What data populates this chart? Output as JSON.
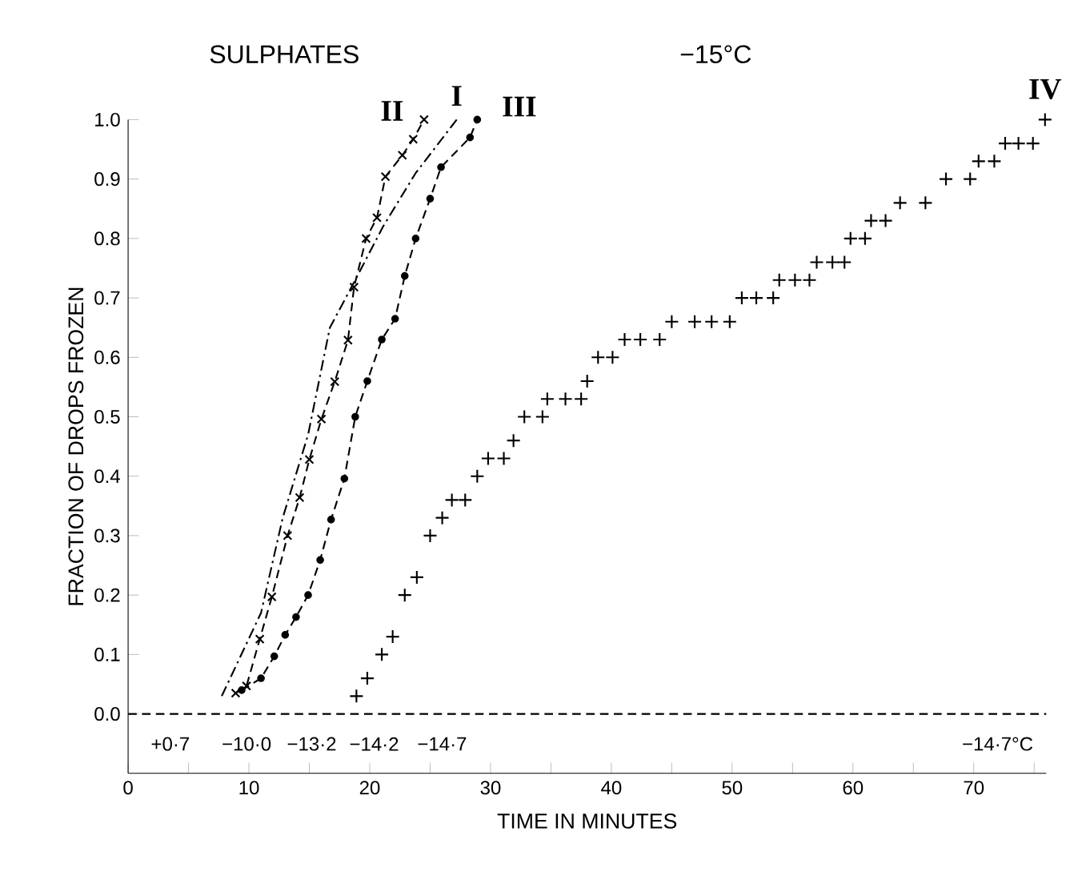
{
  "chart_data": {
    "type": "line",
    "title": "SULPHATES",
    "xlabel": "TIME IN MINUTES",
    "ylabel": "FRACTION OF DROPS FROZEN",
    "xlim": [
      0,
      76
    ],
    "ylim": [
      -0.1,
      1.0
    ],
    "xticks": [
      0,
      {
        "value": 5,
        "label": null
      },
      10,
      {
        "value": 15,
        "label": null
      },
      20,
      {
        "value": 25,
        "label": null
      },
      30,
      {
        "value": 35,
        "label": null
      },
      40,
      {
        "value": 45,
        "label": null
      },
      50,
      {
        "value": 55,
        "label": null
      },
      60,
      {
        "value": 65,
        "label": null
      },
      70,
      {
        "value": 75,
        "label": null
      }
    ],
    "yticks": [
      {
        "value": 0,
        "label": "0.0"
      },
      0.1,
      0.2,
      0.3,
      0.4,
      0.5,
      0.6,
      0.7,
      0.8,
      0.9,
      {
        "value": 1,
        "label": "1.0"
      }
    ],
    "grid": false,
    "ref_lines": [
      {
        "axis": "y",
        "value": 0,
        "line_style": "dashed"
      }
    ],
    "annotations": [
      "−15°C",
      "+0·7",
      "−10·0",
      "−13·2",
      "−14·2",
      "−14·7",
      "−14·7°C"
    ],
    "series": [
      {
        "name": "I",
        "color": "#000000",
        "marker": "none",
        "line_style": "dashdot",
        "x": [
          7.75,
          11,
          12.8,
          14.9,
          16.7,
          18.8,
          21.1,
          23.8,
          27.2
        ],
        "values": [
          0.03,
          0.17,
          0.33,
          0.47,
          0.65,
          0.73,
          0.82,
          0.91,
          1.0
        ]
      },
      {
        "name": "II",
        "color": "#000000",
        "marker": "cross",
        "line_style": "dashed",
        "x": [
          8.9,
          9.8,
          10.9,
          11.9,
          13.2,
          14.2,
          15.0,
          16.0,
          17.1,
          18.2,
          18.7,
          19.7,
          20.6,
          21.3,
          22.7,
          23.6,
          24.5
        ],
        "values": [
          0.035,
          0.047,
          0.126,
          0.197,
          0.3,
          0.364,
          0.428,
          0.496,
          0.559,
          0.629,
          0.718,
          0.8,
          0.835,
          0.904,
          0.94,
          0.967,
          1.0
        ]
      },
      {
        "name": "III",
        "color": "#000000",
        "marker": "circle",
        "line_style": "dashed",
        "x": [
          9.4,
          11.0,
          12.1,
          13.0,
          13.9,
          14.9,
          15.9,
          16.8,
          17.9,
          18.8,
          19.8,
          21.0,
          22.1,
          22.9,
          23.8,
          25.0,
          25.9,
          28.3,
          28.9
        ],
        "values": [
          0.04,
          0.06,
          0.097,
          0.133,
          0.163,
          0.2,
          0.259,
          0.327,
          0.396,
          0.5,
          0.56,
          0.63,
          0.665,
          0.737,
          0.8,
          0.867,
          0.92,
          0.97,
          1.0
        ]
      },
      {
        "name": "IV",
        "type": "scatter",
        "color": "#000000",
        "marker": "plus",
        "x": [
          18.9,
          19.8,
          21.0,
          21.9,
          22.9,
          23.9,
          25.0,
          26.0,
          26.8,
          27.9,
          28.9,
          29.8,
          31.1,
          31.9,
          32.8,
          34.3,
          34.7,
          36.2,
          37.5,
          38.0,
          38.9,
          40.1,
          41.1,
          42.4,
          44.0,
          45.0,
          46.9,
          48.3,
          49.8,
          50.8,
          52.0,
          53.4,
          53.9,
          55.2,
          56.4,
          57.0,
          58.3,
          59.3,
          59.8,
          61.0,
          61.5,
          62.7,
          63.9,
          66.0,
          67.7,
          69.7,
          70.4,
          71.7,
          72.6,
          73.7,
          74.9,
          75.9
        ],
        "values": [
          0.03,
          0.06,
          0.1,
          0.13,
          0.2,
          0.23,
          0.3,
          0.33,
          0.36,
          0.36,
          0.4,
          0.43,
          0.43,
          0.46,
          0.5,
          0.5,
          0.53,
          0.53,
          0.53,
          0.56,
          0.6,
          0.6,
          0.63,
          0.63,
          0.63,
          0.66,
          0.66,
          0.66,
          0.66,
          0.7,
          0.7,
          0.7,
          0.73,
          0.73,
          0.73,
          0.76,
          0.76,
          0.76,
          0.8,
          0.8,
          0.83,
          0.83,
          0.86,
          0.86,
          0.9,
          0.9,
          0.93,
          0.93,
          0.96,
          0.96,
          0.96,
          1.0
        ]
      }
    ]
  }
}
